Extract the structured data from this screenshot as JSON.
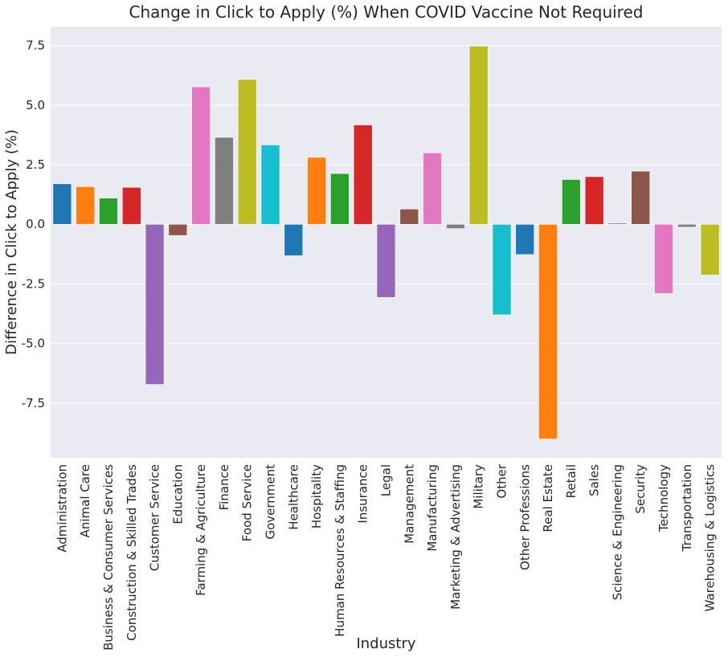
{
  "chart_data": {
    "type": "bar",
    "title": "Change in Click to Apply (%) When COVID Vaccine Not Required",
    "xlabel": "Industry",
    "ylabel": "Difference in Click to Apply (%)",
    "ylim": [
      -9.8,
      8.3
    ],
    "yticks": [
      7.5,
      5.0,
      2.5,
      0.0,
      -2.5,
      -5.0,
      -7.5
    ],
    "ytick_labels": [
      "7.5",
      "5.0",
      "2.5",
      "0.0",
      "-2.5",
      "-5.0",
      "-7.5"
    ],
    "grid": true,
    "legend": "none",
    "categories": [
      "Administration",
      "Animal Care",
      "Business & Consumer Services",
      "Construction & Skilled Trades",
      "Customer Service",
      "Education",
      "Farming & Agriculture",
      "Finance",
      "Food Service",
      "Government",
      "Healthcare",
      "Hospitality",
      "Human Resources & Staffing",
      "Insurance",
      "Legal",
      "Management",
      "Manufacturing",
      "Marketing & Advertising",
      "Military",
      "Other",
      "Other Professions",
      "Real Estate",
      "Retail",
      "Sales",
      "Science & Engineering",
      "Security",
      "Technology",
      "Transportation",
      "Warehousing & Logistics"
    ],
    "values": [
      1.7,
      1.58,
      1.1,
      1.55,
      -6.72,
      -0.47,
      5.77,
      3.65,
      6.08,
      3.33,
      -1.32,
      2.81,
      2.13,
      4.17,
      -3.07,
      0.64,
      3.0,
      -0.18,
      7.48,
      -3.8,
      -1.27,
      -9.01,
      1.88,
      2.0,
      0.05,
      2.23,
      -2.9,
      -0.12,
      -2.13
    ],
    "colors": [
      "#1f77b4",
      "#ff7f0e",
      "#2ca02c",
      "#d62728",
      "#9467bd",
      "#8c564b",
      "#e377c2",
      "#7f7f7f",
      "#bcbd22",
      "#17becf",
      "#1f77b4",
      "#ff7f0e",
      "#2ca02c",
      "#d62728",
      "#9467bd",
      "#8c564b",
      "#e377c2",
      "#7f7f7f",
      "#bcbd22",
      "#17becf",
      "#1f77b4",
      "#ff7f0e",
      "#2ca02c",
      "#d62728",
      "#9467bd",
      "#8c564b",
      "#e377c2",
      "#7f7f7f",
      "#bcbd22"
    ],
    "plot_background": "#eaeaf2",
    "grid_color": "#ffffff"
  }
}
